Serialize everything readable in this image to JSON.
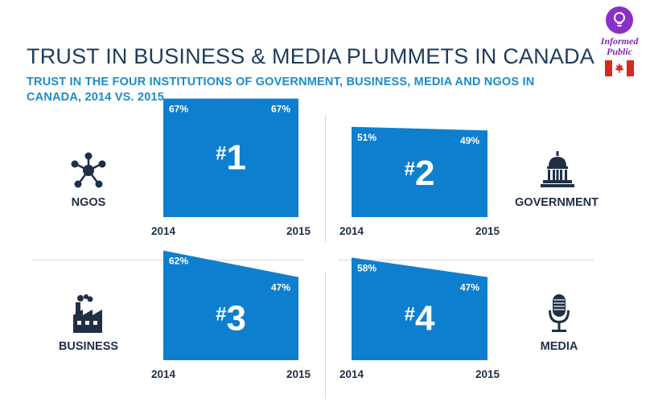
{
  "header": {
    "title": "TRUST IN BUSINESS & MEDIA PLUMMETS IN CANADA",
    "subtitle": "TRUST IN THE FOUR INSTITUTIONS OF GOVERNMENT, BUSINESS, MEDIA AND NGOS IN CANADA, 2014 VS. 2015"
  },
  "logo": {
    "text_line1": "Informed",
    "text_line2": "Public",
    "icon": "lightbulb-icon",
    "flag": "canada-flag-icon"
  },
  "colors": {
    "bar": "#0e7fce",
    "title": "#1f3b5c",
    "subtitle": "#1b8ccc",
    "label": "#1f2f45"
  },
  "chart_data": [
    {
      "type": "area",
      "institution": "NGOS",
      "rank": "#1",
      "x": [
        "2014",
        "2015"
      ],
      "values": [
        67,
        67
      ],
      "value_labels": [
        "67%",
        "67%"
      ],
      "icon": "network-icon"
    },
    {
      "type": "area",
      "institution": "GOVERNMENT",
      "rank": "#2",
      "x": [
        "2014",
        "2015"
      ],
      "values": [
        51,
        49
      ],
      "value_labels": [
        "51%",
        "49%"
      ],
      "icon": "capitol-icon"
    },
    {
      "type": "area",
      "institution": "BUSINESS",
      "rank": "#3",
      "x": [
        "2014",
        "2015"
      ],
      "values": [
        62,
        47
      ],
      "value_labels": [
        "62%",
        "47%"
      ],
      "icon": "factory-icon"
    },
    {
      "type": "area",
      "institution": "MEDIA",
      "rank": "#4",
      "x": [
        "2014",
        "2015"
      ],
      "values": [
        58,
        47
      ],
      "value_labels": [
        "58%",
        "47%"
      ],
      "icon": "microphone-icon"
    }
  ]
}
